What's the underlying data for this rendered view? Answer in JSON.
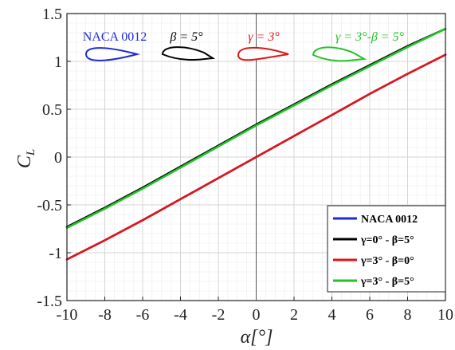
{
  "chart_data": {
    "type": "line",
    "title": "",
    "xlabel": "α[°]",
    "ylabel": "C_L",
    "xlim": [
      -10,
      10
    ],
    "ylim": [
      -1.5,
      1.5
    ],
    "x_ticks": [
      "-10",
      "-8",
      "-6",
      "-4",
      "-2",
      "0",
      "2",
      "4",
      "6",
      "8",
      "10"
    ],
    "y_ticks": [
      "1.5",
      "1",
      "0.5",
      "0",
      "-0.5",
      "-1",
      "-1.5"
    ],
    "grid": true,
    "minor_grid": true,
    "legend_position": "bottom-right",
    "x": [
      -10,
      -8,
      -6,
      -4,
      -2,
      0,
      2,
      4,
      6,
      8,
      10
    ],
    "series": [
      {
        "name": "NACA 0012",
        "color": "#1f2bd6",
        "values": [
          -1.07,
          -0.87,
          -0.66,
          -0.44,
          -0.22,
          0.0,
          0.22,
          0.44,
          0.66,
          0.87,
          1.07
        ]
      },
      {
        "name": "γ=0° - β=5°",
        "color": "#000000",
        "values": [
          -0.73,
          -0.53,
          -0.32,
          -0.1,
          0.12,
          0.34,
          0.55,
          0.76,
          0.96,
          1.16,
          1.34
        ]
      },
      {
        "name": "γ=3° - β=0°",
        "color": "#e01515",
        "values": [
          -1.07,
          -0.87,
          -0.66,
          -0.44,
          -0.22,
          0.0,
          0.22,
          0.44,
          0.66,
          0.87,
          1.07
        ]
      },
      {
        "name": "γ=3° - β=5°",
        "color": "#22c22a",
        "values": [
          -0.74,
          -0.54,
          -0.33,
          -0.11,
          0.11,
          0.33,
          0.54,
          0.75,
          0.95,
          1.15,
          1.34
        ]
      }
    ],
    "annotations": [
      {
        "text": "NACA 0012",
        "color": "#1f2bd6",
        "icon": "airfoil-symmetric"
      },
      {
        "text": "β = 5°",
        "color": "#000000",
        "icon": "airfoil-flapped"
      },
      {
        "text": "γ = 3°",
        "color": "#e01515",
        "icon": "airfoil-cambered"
      },
      {
        "text": "γ = 3°-β = 5°",
        "color": "#22c22a",
        "icon": "airfoil-cambered-flapped"
      }
    ]
  }
}
